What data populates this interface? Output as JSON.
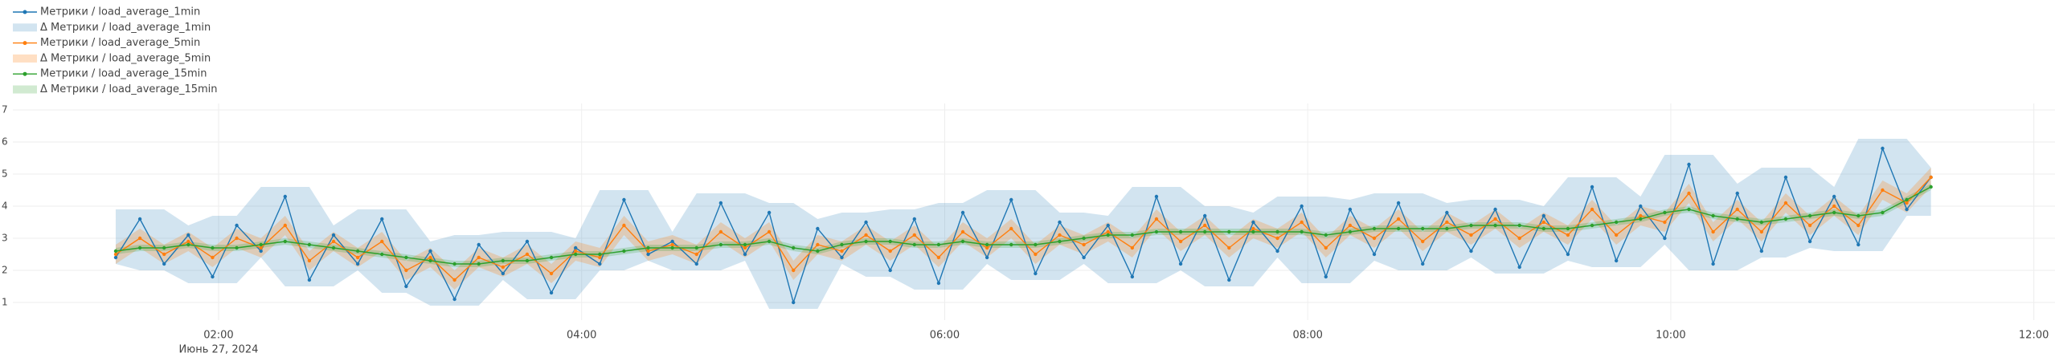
{
  "chart_data": {
    "type": "line",
    "x": [
      "2024-06-27 01:26",
      "2024-06-27 01:34",
      "2024-06-27 01:42",
      "2024-06-27 01:50",
      "2024-06-27 01:58",
      "2024-06-27 02:06",
      "2024-06-27 02:14",
      "2024-06-27 02:22",
      "2024-06-27 02:30",
      "2024-06-27 02:38",
      "2024-06-27 02:46",
      "2024-06-27 02:54",
      "2024-06-27 03:02",
      "2024-06-27 03:10",
      "2024-06-27 03:18",
      "2024-06-27 03:26",
      "2024-06-27 03:34",
      "2024-06-27 03:42",
      "2024-06-27 03:50",
      "2024-06-27 03:58",
      "2024-06-27 04:06",
      "2024-06-27 04:14",
      "2024-06-27 04:22",
      "2024-06-27 04:30",
      "2024-06-27 04:38",
      "2024-06-27 04:46",
      "2024-06-27 04:54",
      "2024-06-27 05:02",
      "2024-06-27 05:10",
      "2024-06-27 05:18",
      "2024-06-27 05:26",
      "2024-06-27 05:34",
      "2024-06-27 05:42",
      "2024-06-27 05:50",
      "2024-06-27 05:58",
      "2024-06-27 06:06",
      "2024-06-27 06:14",
      "2024-06-27 06:22",
      "2024-06-27 06:30",
      "2024-06-27 06:38",
      "2024-06-27 06:46",
      "2024-06-27 06:54",
      "2024-06-27 07:02",
      "2024-06-27 07:10",
      "2024-06-27 07:18",
      "2024-06-27 07:26",
      "2024-06-27 07:34",
      "2024-06-27 07:42",
      "2024-06-27 07:50",
      "2024-06-27 07:58",
      "2024-06-27 08:06",
      "2024-06-27 08:14",
      "2024-06-27 08:22",
      "2024-06-27 08:30",
      "2024-06-27 08:38",
      "2024-06-27 08:46",
      "2024-06-27 08:54",
      "2024-06-27 09:02",
      "2024-06-27 09:10",
      "2024-06-27 09:18",
      "2024-06-27 09:26",
      "2024-06-27 09:34",
      "2024-06-27 09:42",
      "2024-06-27 09:50",
      "2024-06-27 09:58",
      "2024-06-27 10:06",
      "2024-06-27 10:14",
      "2024-06-27 10:22",
      "2024-06-27 10:30",
      "2024-06-27 10:38",
      "2024-06-27 10:46",
      "2024-06-27 10:54",
      "2024-06-27 11:02",
      "2024-06-27 11:10",
      "2024-06-27 11:18",
      "2024-06-27 11:26"
    ],
    "xlim": [
      "2024-06-27 00:52",
      "2024-06-27 12:07"
    ],
    "xticks": [
      {
        "value": "2024-06-27 02:00",
        "label": "02:00"
      },
      {
        "value": "2024-06-27 04:00",
        "label": "04:00"
      },
      {
        "value": "2024-06-27 06:00",
        "label": "06:00"
      },
      {
        "value": "2024-06-27 08:00",
        "label": "08:00"
      },
      {
        "value": "2024-06-27 10:00",
        "label": "10:00"
      },
      {
        "value": "2024-06-27 12:00",
        "label": "12:00"
      }
    ],
    "x_date_label": "Июнь 27, 2024",
    "ylim": [
      0.45,
      7.2
    ],
    "yticks": [
      1,
      2,
      3,
      4,
      5,
      6,
      7
    ],
    "grid": true,
    "series": [
      {
        "name": "Метрики / load_average_1min",
        "kind": "line",
        "color": "#1f77b4",
        "values": [
          2.4,
          3.6,
          2.2,
          3.1,
          1.8,
          3.4,
          2.6,
          4.3,
          1.7,
          3.1,
          2.2,
          3.6,
          1.5,
          2.6,
          1.1,
          2.8,
          1.9,
          2.9,
          1.3,
          2.7,
          2.2,
          4.2,
          2.5,
          2.9,
          2.2,
          4.1,
          2.5,
          3.8,
          1.0,
          3.3,
          2.4,
          3.5,
          2.0,
          3.6,
          1.6,
          3.8,
          2.4,
          4.2,
          1.9,
          3.5,
          2.4,
          3.4,
          1.8,
          4.3,
          2.2,
          3.7,
          1.7,
          3.5,
          2.6,
          4.0,
          1.8,
          3.9,
          2.5,
          4.1,
          2.2,
          3.8,
          2.6,
          3.9,
          2.1,
          3.7,
          2.5,
          4.6,
          2.3,
          4.0,
          3.0,
          5.3,
          2.2,
          4.4,
          2.6,
          4.9,
          2.9,
          4.3,
          2.8,
          5.8,
          3.9,
          4.9
        ]
      },
      {
        "name": "Δ Метрики / load_average_1min",
        "kind": "band",
        "color": "rgba(31,119,180,0.2)",
        "lower": [
          2.2,
          2.0,
          2.0,
          1.6,
          1.6,
          1.6,
          2.4,
          1.5,
          1.5,
          1.5,
          2.0,
          1.3,
          1.3,
          0.9,
          0.9,
          0.9,
          1.7,
          1.1,
          1.1,
          1.1,
          2.0,
          2.0,
          2.3,
          2.0,
          2.0,
          2.0,
          2.3,
          0.8,
          0.8,
          0.8,
          2.2,
          1.8,
          1.8,
          1.4,
          1.4,
          1.4,
          2.2,
          1.7,
          1.7,
          1.7,
          2.2,
          1.6,
          1.6,
          1.6,
          2.0,
          1.5,
          1.5,
          1.5,
          2.4,
          1.6,
          1.6,
          1.6,
          2.3,
          2.0,
          2.0,
          2.0,
          2.4,
          1.9,
          1.9,
          1.9,
          2.3,
          2.1,
          2.1,
          2.1,
          2.8,
          2.0,
          2.0,
          2.0,
          2.4,
          2.4,
          2.7,
          2.6,
          2.6,
          2.6,
          3.7,
          3.7
        ],
        "upper": [
          3.9,
          3.9,
          3.9,
          3.4,
          3.7,
          3.7,
          4.6,
          4.6,
          4.6,
          3.4,
          3.9,
          3.9,
          3.9,
          2.9,
          3.1,
          3.1,
          3.2,
          3.2,
          3.2,
          3.0,
          4.5,
          4.5,
          4.5,
          3.2,
          4.4,
          4.4,
          4.4,
          4.1,
          4.1,
          3.6,
          3.8,
          3.8,
          3.9,
          3.9,
          4.1,
          4.1,
          4.5,
          4.5,
          4.5,
          3.8,
          3.8,
          3.7,
          4.6,
          4.6,
          4.6,
          4.0,
          4.0,
          3.8,
          4.3,
          4.3,
          4.3,
          4.2,
          4.4,
          4.4,
          4.4,
          4.1,
          4.2,
          4.2,
          4.2,
          4.0,
          4.9,
          4.9,
          4.9,
          4.3,
          5.6,
          5.6,
          5.6,
          4.7,
          5.2,
          5.2,
          5.2,
          4.6,
          6.1,
          6.1,
          6.1,
          5.2
        ]
      },
      {
        "name": "Метрики / load_average_5min",
        "kind": "line",
        "color": "#ff7f0e",
        "values": [
          2.5,
          3.0,
          2.5,
          2.9,
          2.4,
          3.0,
          2.7,
          3.4,
          2.3,
          2.9,
          2.4,
          2.9,
          2.0,
          2.4,
          1.7,
          2.4,
          2.1,
          2.5,
          1.9,
          2.6,
          2.4,
          3.4,
          2.6,
          2.8,
          2.5,
          3.2,
          2.7,
          3.2,
          2.0,
          2.8,
          2.6,
          3.1,
          2.6,
          3.1,
          2.4,
          3.2,
          2.7,
          3.3,
          2.5,
          3.1,
          2.8,
          3.2,
          2.7,
          3.6,
          2.9,
          3.4,
          2.7,
          3.3,
          3.0,
          3.5,
          2.7,
          3.4,
          3.0,
          3.6,
          2.9,
          3.5,
          3.1,
          3.6,
          3.0,
          3.5,
          3.1,
          3.9,
          3.1,
          3.7,
          3.5,
          4.4,
          3.2,
          3.9,
          3.2,
          4.1,
          3.4,
          4.0,
          3.4,
          4.5,
          4.1,
          4.9
        ]
      },
      {
        "name": "Δ Метрики / load_average_5min",
        "kind": "band",
        "color": "rgba(255,127,14,0.25)",
        "lower": [
          2.2,
          2.7,
          2.2,
          2.6,
          2.1,
          2.7,
          2.4,
          3.1,
          2.0,
          2.6,
          2.1,
          2.6,
          1.7,
          2.1,
          1.4,
          2.1,
          1.8,
          2.2,
          1.6,
          2.3,
          2.1,
          3.1,
          2.3,
          2.5,
          2.2,
          2.9,
          2.4,
          2.9,
          1.7,
          2.5,
          2.3,
          2.8,
          2.3,
          2.8,
          2.1,
          2.9,
          2.4,
          3.0,
          2.2,
          2.8,
          2.5,
          2.9,
          2.4,
          3.3,
          2.6,
          3.1,
          2.4,
          3.0,
          2.7,
          3.2,
          2.4,
          3.1,
          2.7,
          3.3,
          2.6,
          3.2,
          2.8,
          3.3,
          2.7,
          3.2,
          2.8,
          3.6,
          2.8,
          3.4,
          3.2,
          4.1,
          2.9,
          3.6,
          2.9,
          3.8,
          3.1,
          3.7,
          3.1,
          4.2,
          3.8,
          4.6
        ],
        "upper": [
          2.8,
          3.3,
          2.8,
          3.2,
          2.7,
          3.3,
          3.0,
          3.7,
          2.6,
          3.2,
          2.7,
          3.2,
          2.3,
          2.7,
          2.0,
          2.7,
          2.4,
          2.8,
          2.2,
          2.9,
          2.7,
          3.7,
          2.9,
          3.1,
          2.8,
          3.5,
          3.0,
          3.5,
          2.3,
          3.1,
          2.9,
          3.4,
          2.9,
          3.4,
          2.7,
          3.5,
          3.0,
          3.6,
          2.8,
          3.4,
          3.1,
          3.5,
          3.0,
          3.9,
          3.2,
          3.7,
          3.0,
          3.6,
          3.3,
          3.8,
          3.0,
          3.7,
          3.3,
          3.9,
          3.2,
          3.8,
          3.4,
          3.9,
          3.3,
          3.8,
          3.4,
          4.2,
          3.4,
          4.0,
          3.8,
          4.7,
          3.5,
          4.2,
          3.5,
          4.4,
          3.7,
          4.3,
          3.7,
          4.8,
          4.4,
          5.2
        ]
      },
      {
        "name": "Метрики / load_average_15min",
        "kind": "line",
        "color": "#2ca02c",
        "values": [
          2.6,
          2.7,
          2.7,
          2.8,
          2.7,
          2.7,
          2.8,
          2.9,
          2.8,
          2.7,
          2.6,
          2.5,
          2.4,
          2.3,
          2.2,
          2.2,
          2.3,
          2.3,
          2.4,
          2.5,
          2.5,
          2.6,
          2.7,
          2.7,
          2.7,
          2.8,
          2.8,
          2.9,
          2.7,
          2.6,
          2.8,
          2.9,
          2.9,
          2.8,
          2.8,
          2.9,
          2.8,
          2.8,
          2.8,
          2.9,
          3.0,
          3.1,
          3.1,
          3.2,
          3.2,
          3.2,
          3.2,
          3.2,
          3.2,
          3.2,
          3.1,
          3.2,
          3.3,
          3.3,
          3.3,
          3.3,
          3.4,
          3.4,
          3.4,
          3.3,
          3.3,
          3.4,
          3.5,
          3.6,
          3.8,
          3.9,
          3.7,
          3.6,
          3.5,
          3.6,
          3.7,
          3.8,
          3.7,
          3.8,
          4.2,
          4.6
        ]
      },
      {
        "name": "Δ Метрики / load_average_15min",
        "kind": "band",
        "color": "rgba(44,160,44,0.22)",
        "lower": [
          2.5,
          2.6,
          2.6,
          2.7,
          2.6,
          2.6,
          2.7,
          2.8,
          2.7,
          2.6,
          2.5,
          2.4,
          2.3,
          2.2,
          2.1,
          2.1,
          2.2,
          2.2,
          2.3,
          2.4,
          2.4,
          2.5,
          2.6,
          2.6,
          2.6,
          2.7,
          2.7,
          2.8,
          2.6,
          2.5,
          2.7,
          2.8,
          2.8,
          2.7,
          2.7,
          2.8,
          2.7,
          2.7,
          2.7,
          2.8,
          2.9,
          3.0,
          3.0,
          3.1,
          3.1,
          3.1,
          3.1,
          3.1,
          3.1,
          3.1,
          3.0,
          3.1,
          3.2,
          3.2,
          3.2,
          3.2,
          3.3,
          3.3,
          3.3,
          3.2,
          3.2,
          3.3,
          3.4,
          3.5,
          3.7,
          3.8,
          3.6,
          3.5,
          3.4,
          3.5,
          3.6,
          3.7,
          3.6,
          3.7,
          4.1,
          4.5
        ],
        "upper": [
          2.7,
          2.8,
          2.8,
          2.9,
          2.8,
          2.8,
          2.9,
          3.0,
          2.9,
          2.8,
          2.7,
          2.6,
          2.5,
          2.4,
          2.3,
          2.3,
          2.4,
          2.4,
          2.5,
          2.6,
          2.6,
          2.7,
          2.8,
          2.8,
          2.8,
          2.9,
          2.9,
          3.0,
          2.8,
          2.7,
          2.9,
          3.0,
          3.0,
          2.9,
          2.9,
          3.0,
          2.9,
          2.9,
          2.9,
          3.0,
          3.1,
          3.2,
          3.2,
          3.3,
          3.3,
          3.3,
          3.3,
          3.3,
          3.3,
          3.3,
          3.2,
          3.3,
          3.4,
          3.4,
          3.4,
          3.4,
          3.5,
          3.5,
          3.5,
          3.4,
          3.4,
          3.5,
          3.6,
          3.7,
          3.9,
          4.0,
          3.8,
          3.7,
          3.6,
          3.7,
          3.8,
          3.9,
          3.8,
          3.9,
          4.3,
          4.7
        ]
      }
    ]
  }
}
